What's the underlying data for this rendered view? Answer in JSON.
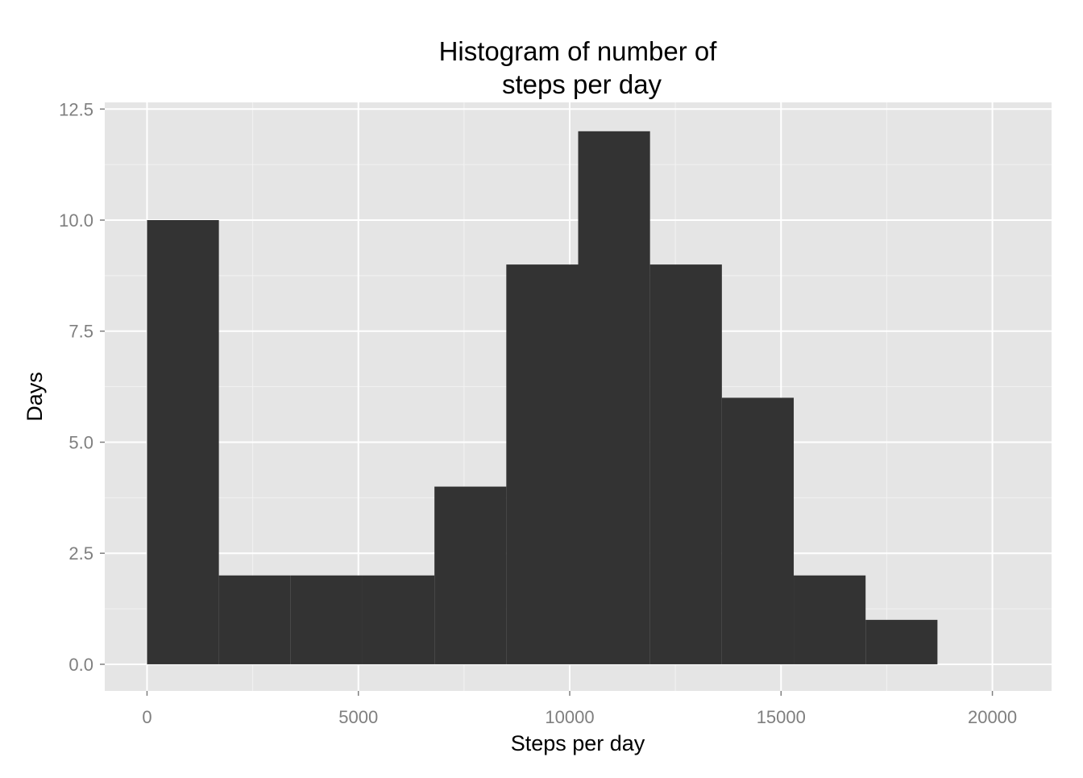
{
  "chart_data": {
    "type": "bar",
    "subtype": "histogram",
    "title_lines": [
      "Histogram of number of",
      "steps per day"
    ],
    "xlabel": "Steps per day",
    "ylabel": "Days",
    "xlim": [
      -1000,
      21400
    ],
    "ylim": [
      -0.6,
      12.65
    ],
    "x_ticks": [
      0,
      5000,
      10000,
      15000,
      20000
    ],
    "x_tick_labels": [
      "0",
      "5000",
      "10000",
      "15000",
      "20000"
    ],
    "y_ticks": [
      0,
      2.5,
      5,
      7.5,
      10,
      12.5
    ],
    "y_tick_labels": [
      "0.0",
      "2.5",
      "5.0",
      "7.5",
      "10.0",
      "12.5"
    ],
    "x_minor_ticks": [
      2500,
      7500,
      12500,
      17500
    ],
    "y_minor_ticks": [
      1.25,
      3.75,
      6.25,
      8.75,
      11.25
    ],
    "bins": [
      {
        "start": 0,
        "end": 1700,
        "count": 10
      },
      {
        "start": 1700,
        "end": 3400,
        "count": 2
      },
      {
        "start": 3400,
        "end": 5100,
        "count": 2
      },
      {
        "start": 5100,
        "end": 6800,
        "count": 2
      },
      {
        "start": 6800,
        "end": 8500,
        "count": 4
      },
      {
        "start": 8500,
        "end": 10200,
        "count": 9
      },
      {
        "start": 10200,
        "end": 11900,
        "count": 12
      },
      {
        "start": 11900,
        "end": 13600,
        "count": 9
      },
      {
        "start": 13600,
        "end": 15300,
        "count": 6
      },
      {
        "start": 15300,
        "end": 17000,
        "count": 2
      },
      {
        "start": 17000,
        "end": 18700,
        "count": 1
      }
    ],
    "grid": true,
    "colors": {
      "panel_background": "#e5e5e5",
      "grid_major": "#ffffff",
      "grid_minor": "#f2f2f2",
      "bar_fill": "#333333",
      "tick_text": "#7f7f7f",
      "tick_mark": "#7f7f7f"
    }
  }
}
